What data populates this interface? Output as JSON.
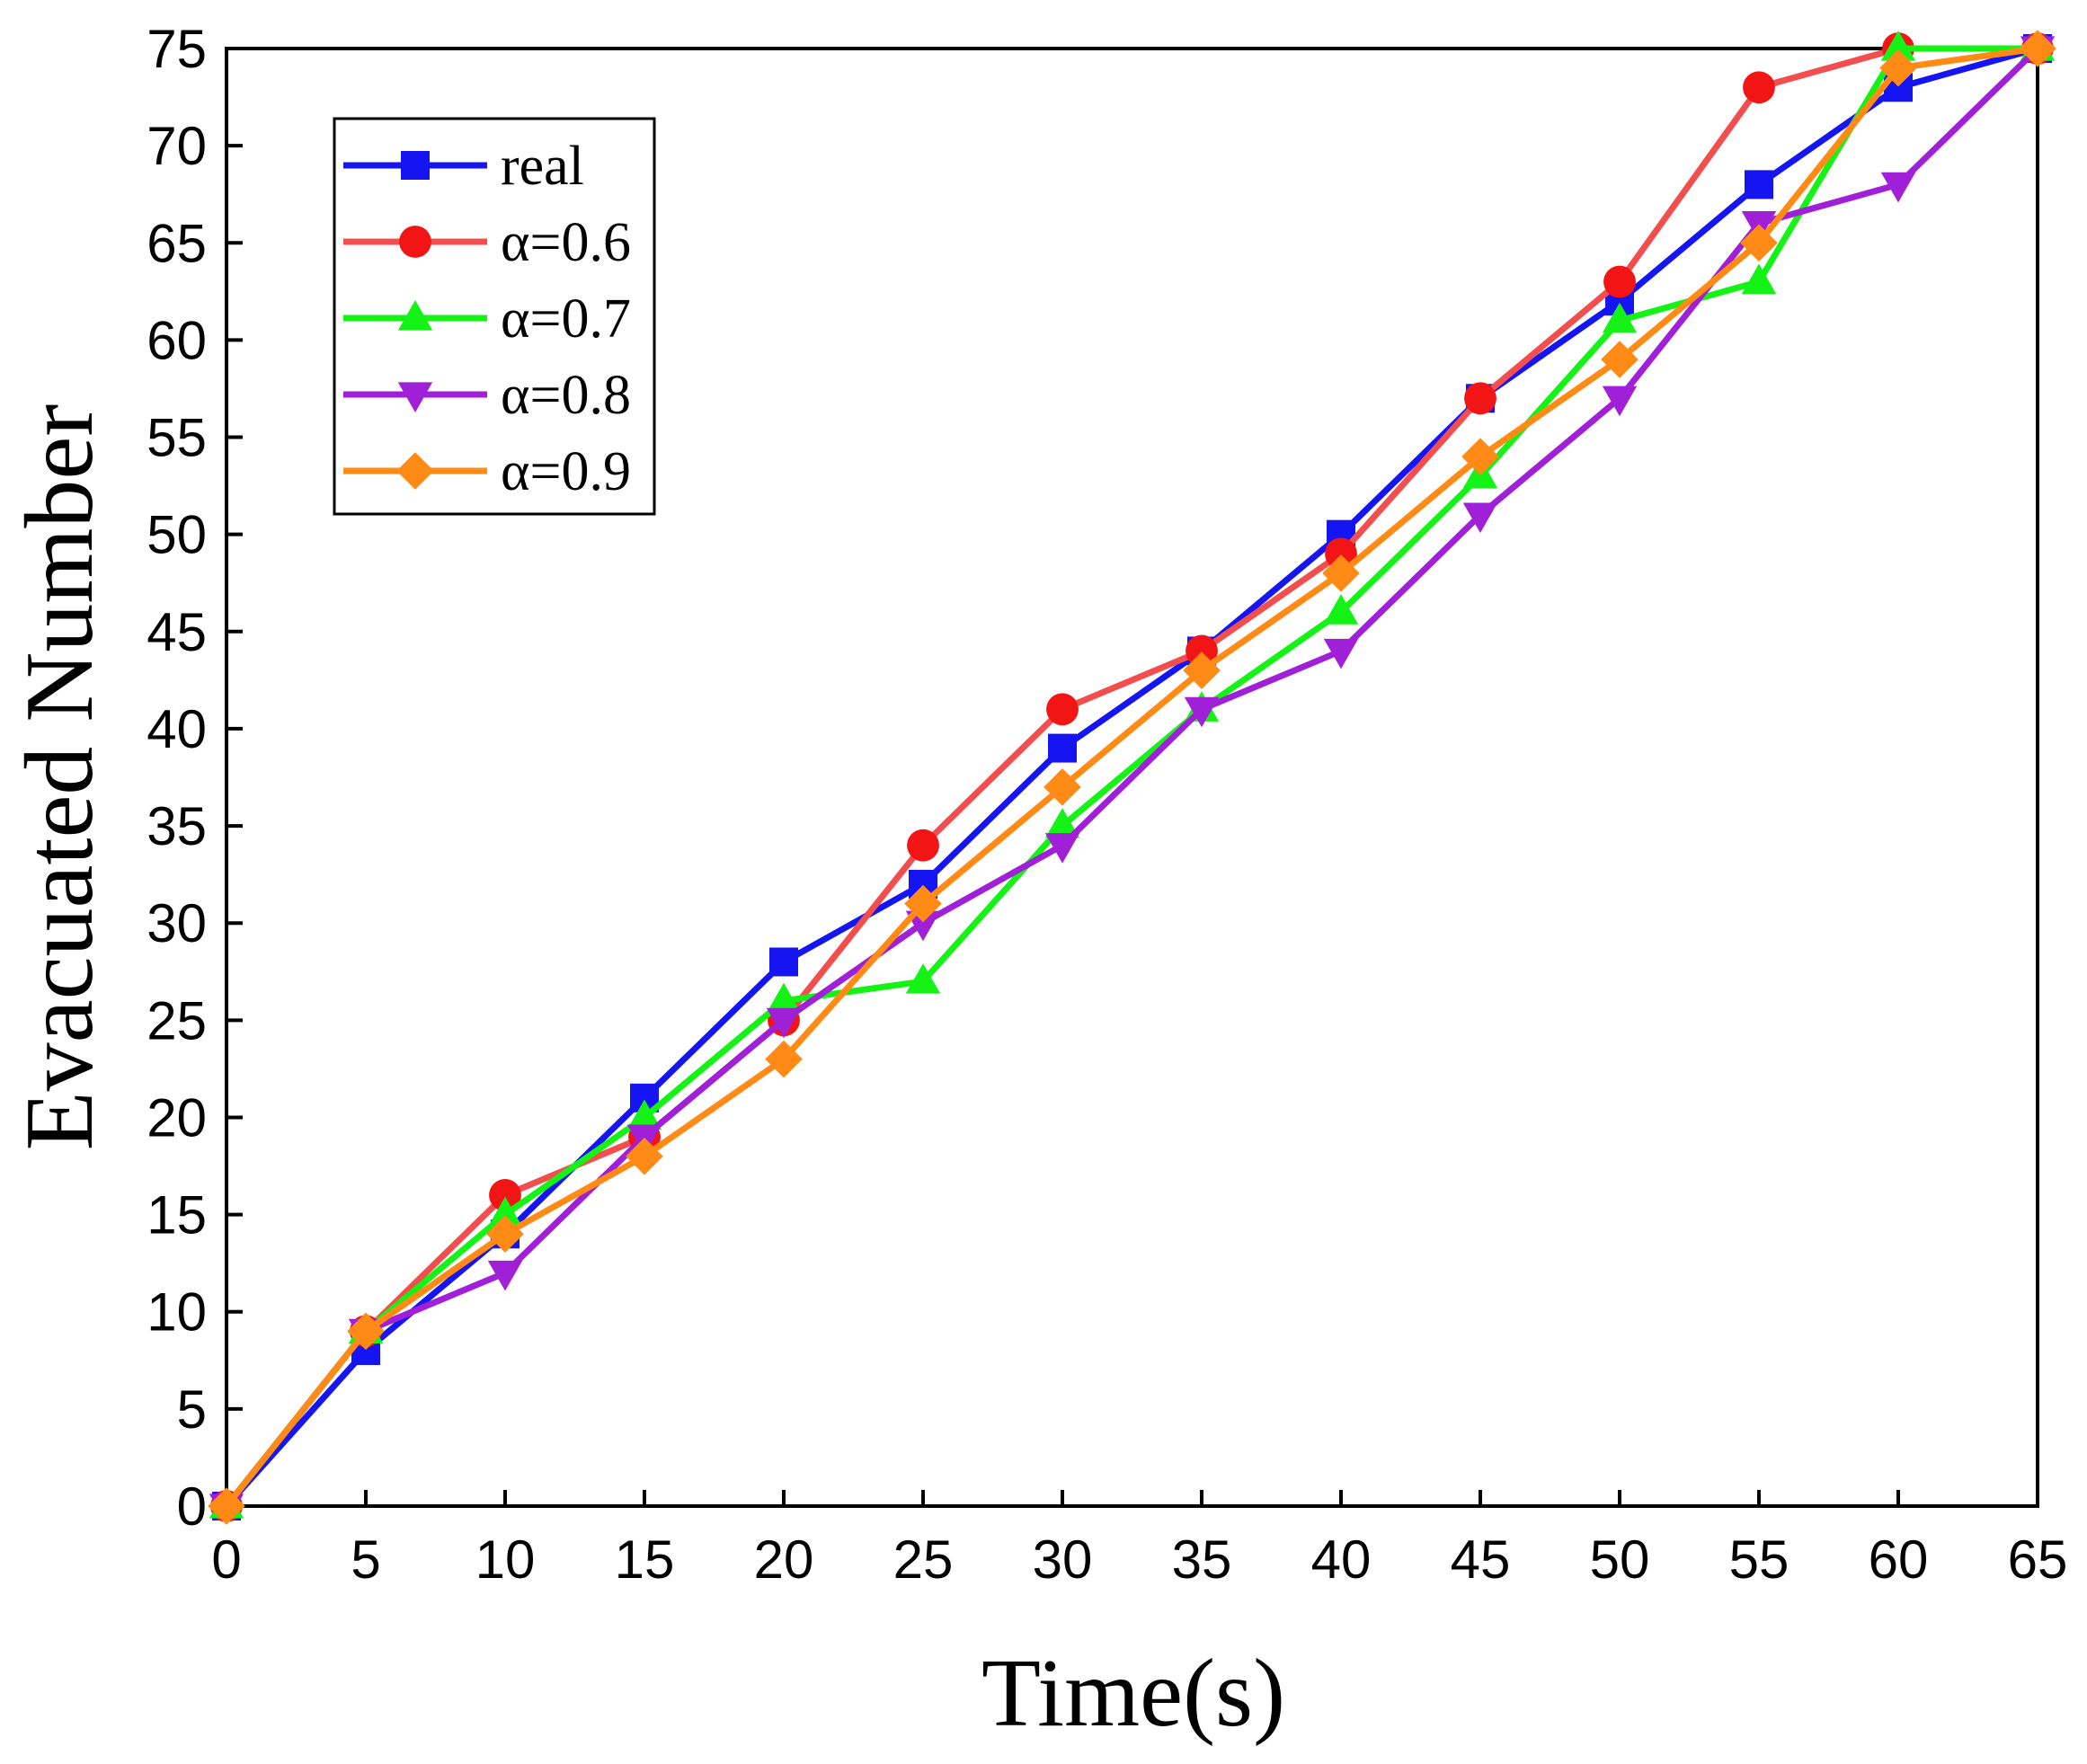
{
  "chart_data": {
    "type": "line",
    "title": "",
    "xlabel": "Time(s)",
    "ylabel": "Evacuated Number",
    "xlim": [
      0,
      65
    ],
    "ylim": [
      0,
      75
    ],
    "xticks": [
      0,
      5,
      10,
      15,
      20,
      25,
      30,
      35,
      40,
      45,
      50,
      55,
      60,
      65
    ],
    "yticks": [
      0,
      5,
      10,
      15,
      20,
      25,
      30,
      35,
      40,
      45,
      50,
      55,
      60,
      65,
      70,
      75
    ],
    "grid": false,
    "legend_position": "top-left",
    "x": [
      0,
      5,
      10,
      15,
      20,
      25,
      30,
      35,
      40,
      45,
      50,
      55,
      60,
      65
    ],
    "series": [
      {
        "name": "real",
        "color": "#1515f2",
        "marker": "square",
        "values": [
          0,
          8,
          14,
          21,
          28,
          32,
          39,
          44,
          50,
          57,
          62,
          68,
          73,
          75
        ]
      },
      {
        "name": "α=0.6",
        "color": "#f24e4e",
        "marker_color": "#f21515",
        "marker": "circle",
        "values": [
          0,
          9,
          16,
          19,
          25,
          34,
          41,
          44,
          49,
          57,
          63,
          73,
          75,
          75
        ]
      },
      {
        "name": "α=0.7",
        "color": "#15f215",
        "marker": "triangle-up",
        "values": [
          0,
          9,
          15,
          20,
          26,
          27,
          35,
          41,
          46,
          53,
          61,
          63,
          75,
          75
        ]
      },
      {
        "name": "α=0.8",
        "color": "#a020d8",
        "marker": "triangle-down",
        "values": [
          0,
          9,
          12,
          19,
          25,
          30,
          34,
          41,
          44,
          51,
          57,
          66,
          68,
          75
        ]
      },
      {
        "name": "α=0.9",
        "color": "#ff8a15",
        "marker": "diamond",
        "values": [
          0,
          9,
          14,
          18,
          23,
          31,
          37,
          43,
          48,
          54,
          59,
          65,
          74,
          75
        ]
      }
    ]
  }
}
